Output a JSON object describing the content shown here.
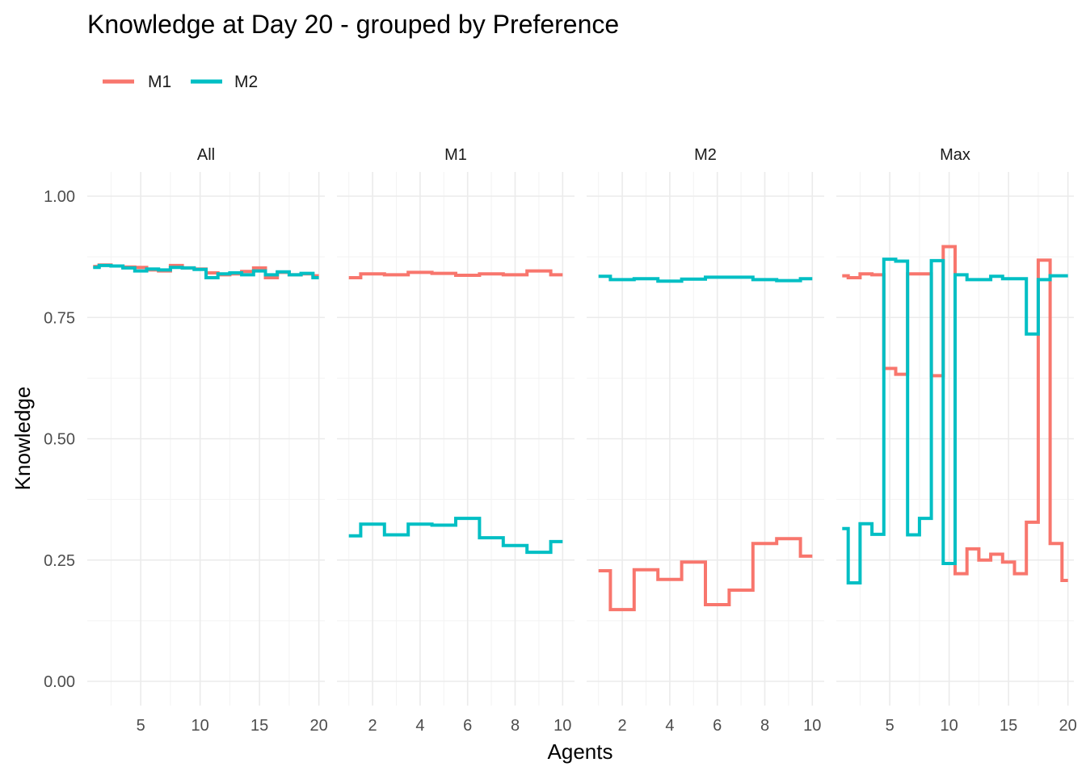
{
  "chart_data": {
    "type": "line",
    "step": true,
    "title": "Knowledge at Day 20 - grouped by Preference",
    "xlabel": "Agents",
    "ylabel": "Knowledge",
    "ylim": [
      0,
      1
    ],
    "yticks": [
      {
        "value": 0,
        "label": "0.00"
      },
      {
        "value": 0.25,
        "label": "0.25"
      },
      {
        "value": 0.5,
        "label": "0.50"
      },
      {
        "value": 0.75,
        "label": "0.75"
      },
      {
        "value": 1,
        "label": "1.00"
      }
    ],
    "grid": true,
    "legend_position": "top-left",
    "legend": [
      {
        "name": "M1",
        "color": "#F8766D"
      },
      {
        "name": "M2",
        "color": "#00BFC4"
      }
    ],
    "panels": [
      {
        "name": "All",
        "xlim": [
          0.5,
          20.5
        ],
        "xticks": [
          5,
          10,
          15,
          20
        ],
        "series": [
          {
            "name": "M1",
            "x": [
              1,
              2,
              3,
              4,
              5,
              6,
              7,
              8,
              9,
              10,
              11,
              12,
              13,
              14,
              15,
              16,
              17,
              18,
              19,
              20
            ],
            "values": [
              0.855,
              0.858,
              0.856,
              0.854,
              0.853,
              0.848,
              0.846,
              0.857,
              0.852,
              0.85,
              0.842,
              0.838,
              0.84,
              0.845,
              0.852,
              0.832,
              0.843,
              0.838,
              0.84,
              0.836
            ]
          },
          {
            "name": "M2",
            "x": [
              1,
              2,
              3,
              4,
              5,
              6,
              7,
              8,
              9,
              10,
              11,
              12,
              13,
              14,
              15,
              16,
              17,
              18,
              19,
              20
            ],
            "values": [
              0.853,
              0.857,
              0.856,
              0.852,
              0.846,
              0.85,
              0.848,
              0.853,
              0.852,
              0.849,
              0.832,
              0.84,
              0.842,
              0.838,
              0.846,
              0.838,
              0.844,
              0.838,
              0.841,
              0.832
            ]
          }
        ]
      },
      {
        "name": "M1",
        "xlim": [
          0.5,
          10.5
        ],
        "xticks": [
          2,
          4,
          6,
          8,
          10
        ],
        "series": [
          {
            "name": "M1",
            "x": [
              1,
              2,
              3,
              4,
              5,
              6,
              7,
              8,
              9,
              10
            ],
            "values": [
              0.832,
              0.84,
              0.838,
              0.843,
              0.841,
              0.837,
              0.84,
              0.838,
              0.846,
              0.838
            ]
          },
          {
            "name": "M2",
            "x": [
              1,
              2,
              3,
              4,
              5,
              6,
              7,
              8,
              9,
              10
            ],
            "values": [
              0.3,
              0.324,
              0.302,
              0.324,
              0.322,
              0.336,
              0.296,
              0.28,
              0.266,
              0.288
            ]
          }
        ]
      },
      {
        "name": "M2",
        "xlim": [
          0.5,
          10.5
        ],
        "xticks": [
          2,
          4,
          6,
          8,
          10
        ],
        "series": [
          {
            "name": "M1",
            "x": [
              1,
              2,
              3,
              4,
              5,
              6,
              7,
              8,
              9,
              10
            ],
            "values": [
              0.228,
              0.148,
              0.23,
              0.21,
              0.246,
              0.158,
              0.188,
              0.284,
              0.294,
              0.258
            ]
          },
          {
            "name": "M2",
            "x": [
              1,
              2,
              3,
              4,
              5,
              6,
              7,
              8,
              9,
              10
            ],
            "values": [
              0.835,
              0.828,
              0.83,
              0.825,
              0.829,
              0.833,
              0.833,
              0.828,
              0.826,
              0.83
            ]
          }
        ]
      },
      {
        "name": "Max",
        "xlim": [
          0.5,
          20.5
        ],
        "xticks": [
          5,
          10,
          15,
          20
        ],
        "series": [
          {
            "name": "M1",
            "x": [
              1,
              2,
              3,
              4,
              5,
              6,
              7,
              8,
              9,
              10,
              11,
              12,
              13,
              14,
              15,
              16,
              17,
              18,
              19,
              20
            ],
            "values": [
              0.836,
              0.832,
              0.84,
              0.838,
              0.645,
              0.633,
              0.84,
              0.84,
              0.63,
              0.896,
              0.222,
              0.273,
              0.25,
              0.262,
              0.246,
              0.222,
              0.328,
              0.868,
              0.284,
              0.208
            ]
          },
          {
            "name": "M2",
            "x": [
              1,
              2,
              3,
              4,
              5,
              6,
              7,
              8,
              9,
              10,
              11,
              12,
              13,
              14,
              15,
              16,
              17,
              18,
              19,
              20
            ],
            "values": [
              0.315,
              0.203,
              0.325,
              0.303,
              0.87,
              0.866,
              0.302,
              0.336,
              0.867,
              0.243,
              0.838,
              0.828,
              0.828,
              0.835,
              0.83,
              0.83,
              0.716,
              0.828,
              0.836,
              0.836
            ]
          }
        ]
      }
    ]
  }
}
